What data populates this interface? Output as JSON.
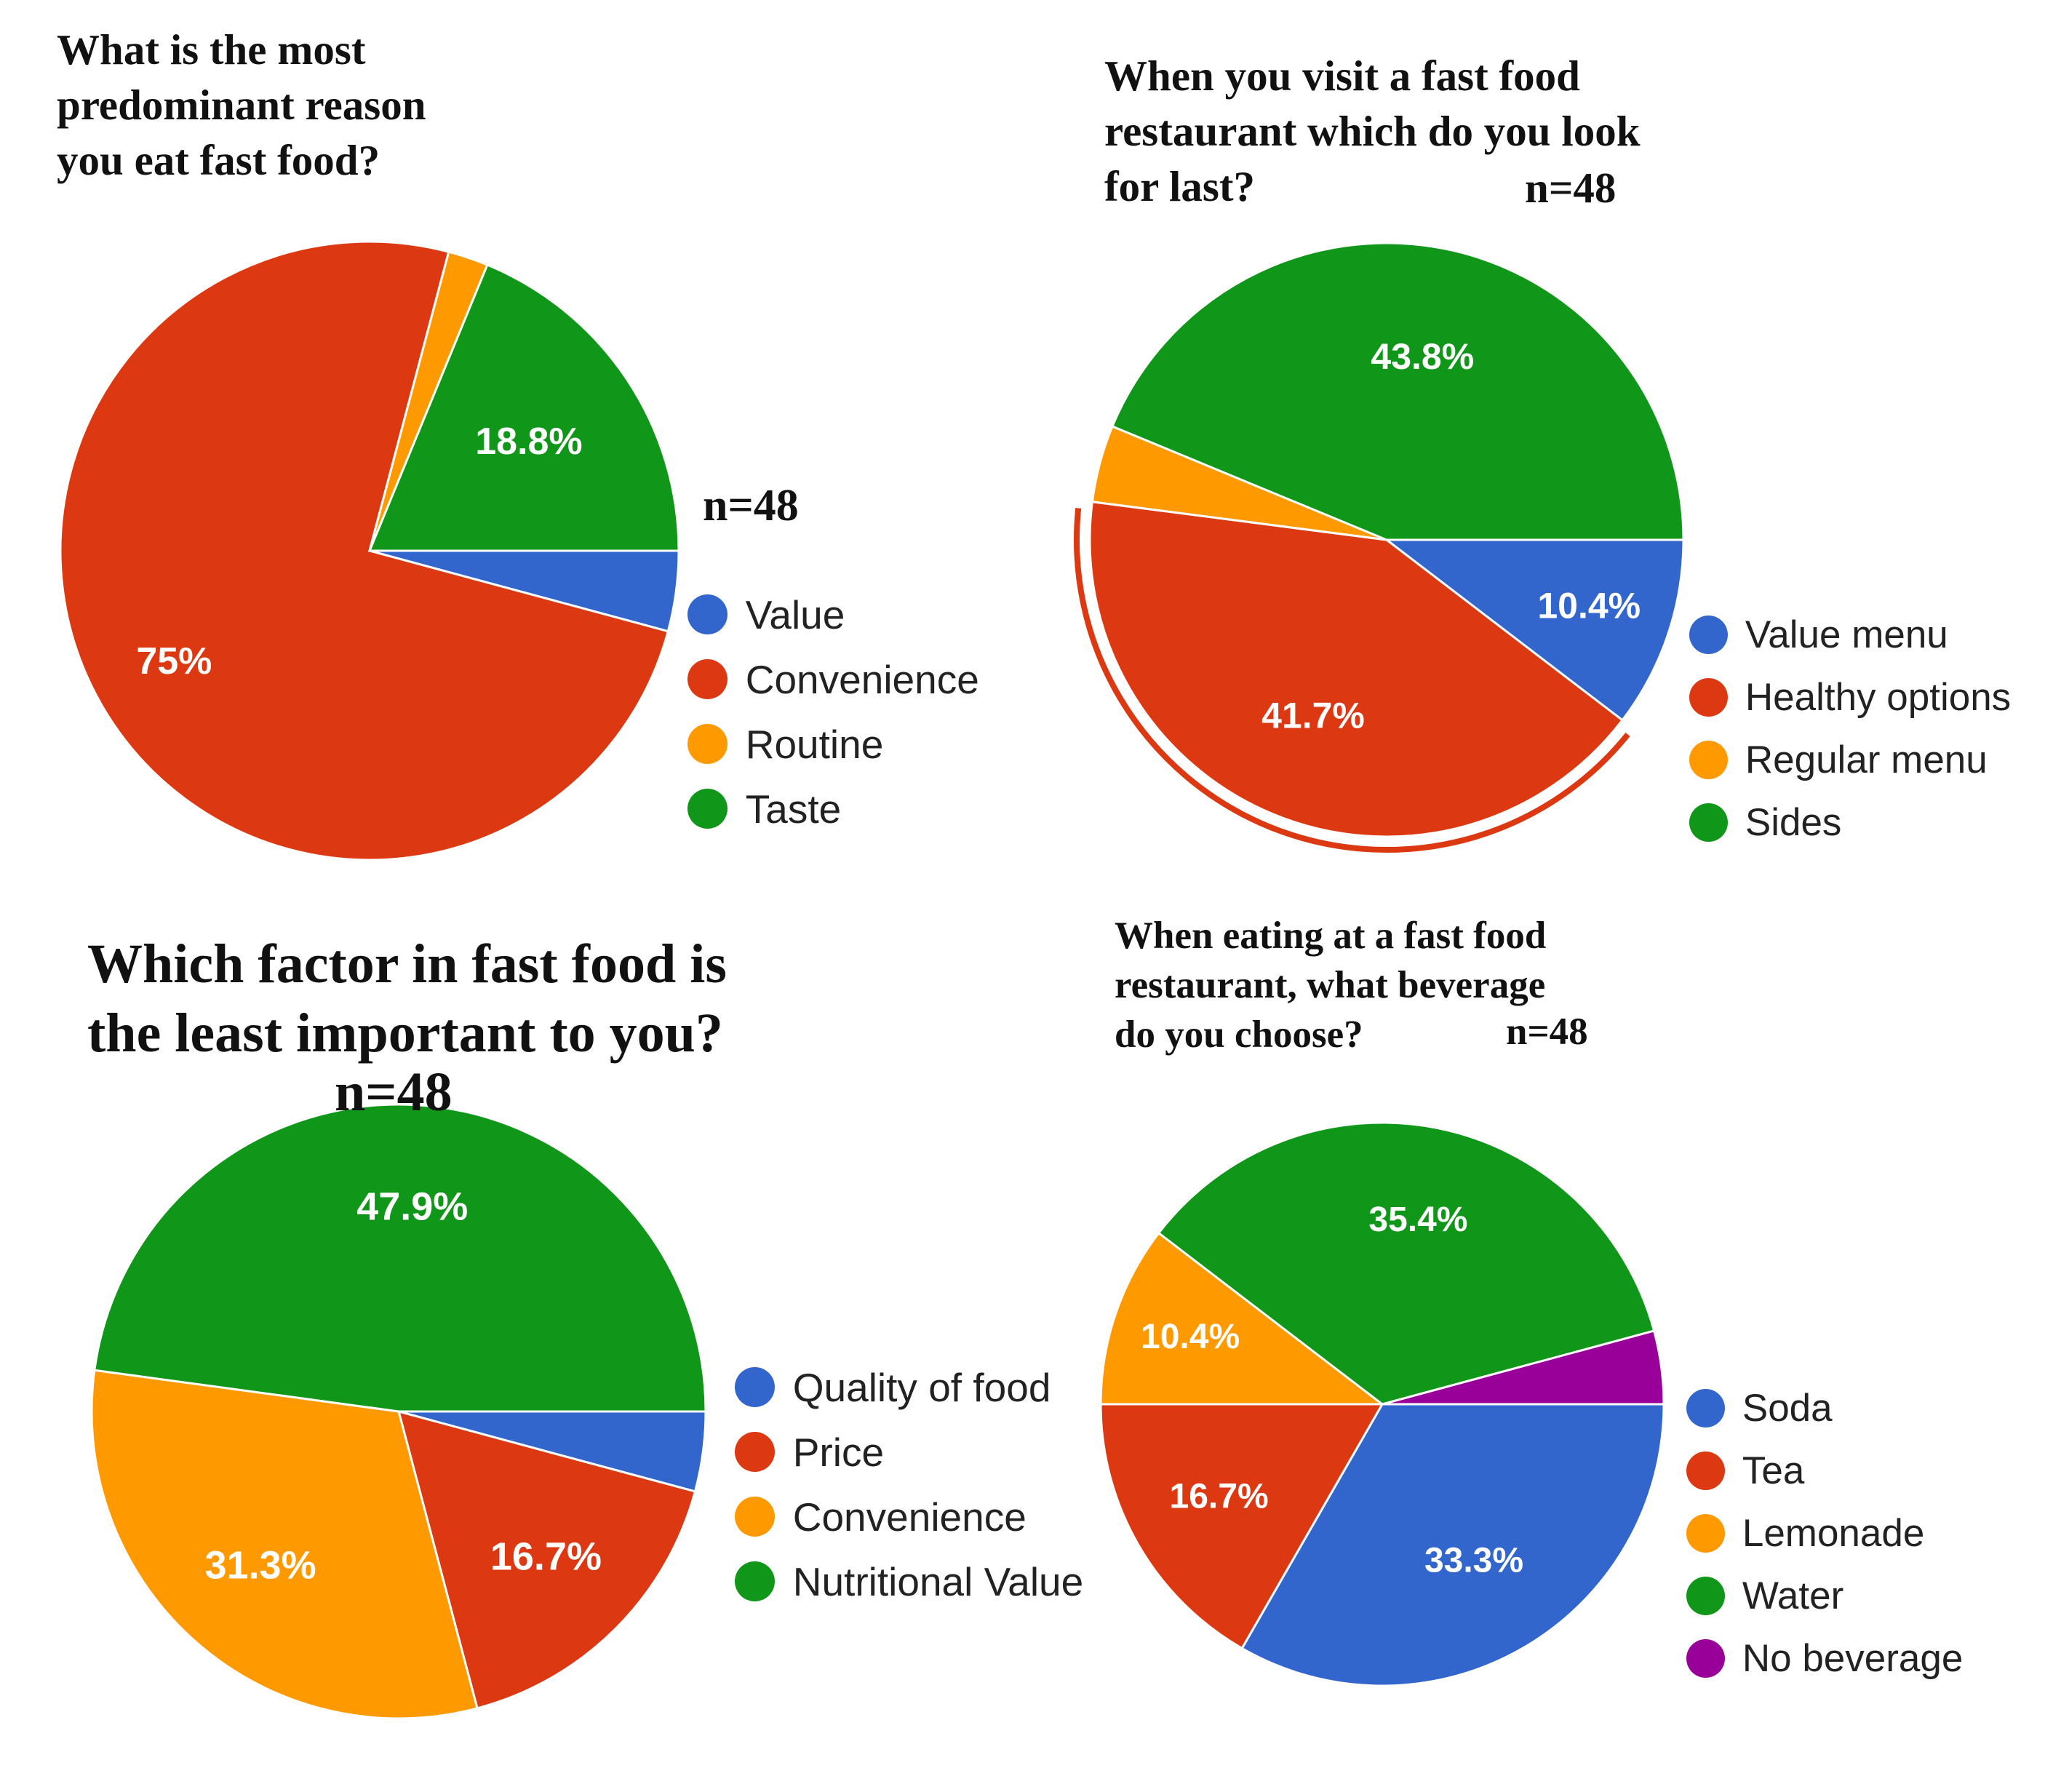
{
  "chart_data": [
    {
      "type": "pie",
      "title": "What is the most\npredominant reason\nyou eat fast food?",
      "n_label": "n=48",
      "labels": [
        "Value",
        "Convenience",
        "Routine",
        "Taste"
      ],
      "values": [
        4.2,
        75,
        2.1,
        18.8
      ],
      "slice_labels": [
        "",
        "75%",
        "",
        "18.8%"
      ],
      "colors": [
        "#3366cc",
        "#dc3912",
        "#ff9900",
        "#109618"
      ],
      "legend_position": "right"
    },
    {
      "type": "pie",
      "title": "When you visit a fast food\nrestaurant which do you look\nfor last?",
      "n_label": "n=48",
      "labels": [
        "Value menu",
        "Healthy options",
        "Regular menu",
        "Sides"
      ],
      "values": [
        10.4,
        41.7,
        4.2,
        43.8
      ],
      "slice_labels": [
        "10.4%",
        "41.7%",
        "",
        "43.8%"
      ],
      "colors": [
        "#3366cc",
        "#dc3912",
        "#ff9900",
        "#109618"
      ],
      "highlighted": "Healthy options",
      "legend_position": "right"
    },
    {
      "type": "pie",
      "title": "Which factor in fast food is\nthe least important to you?",
      "n_label": "n=48",
      "labels": [
        "Quality of food",
        "Price",
        "Convenience",
        "Nutritional Value"
      ],
      "values": [
        4.2,
        16.7,
        31.3,
        47.9
      ],
      "slice_labels": [
        "",
        "16.7%",
        "31.3%",
        "47.9%"
      ],
      "colors": [
        "#3366cc",
        "#dc3912",
        "#ff9900",
        "#109618"
      ],
      "legend_position": "right"
    },
    {
      "type": "pie",
      "title": "When eating at a fast food\nrestaurant, what beverage\ndo you choose?",
      "n_label": "n=48",
      "labels": [
        "Soda",
        "Tea",
        "Lemonade",
        "Water",
        "No beverage"
      ],
      "values": [
        33.3,
        16.7,
        10.4,
        35.4,
        4.2
      ],
      "slice_labels": [
        "33.3%",
        "16.7%",
        "10.4%",
        "35.4%",
        ""
      ],
      "colors": [
        "#3366cc",
        "#dc3912",
        "#ff9900",
        "#109618",
        "#990099"
      ],
      "legend_position": "right"
    }
  ]
}
